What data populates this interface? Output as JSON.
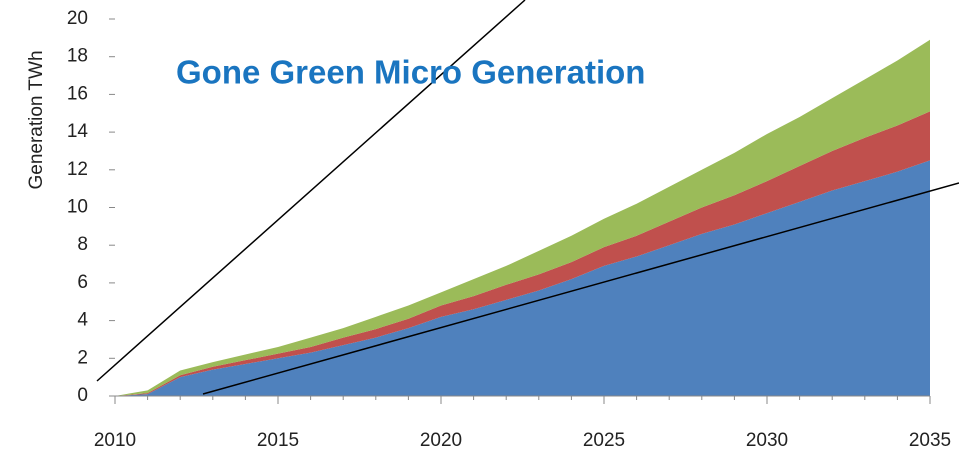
{
  "chart_data": {
    "type": "stacked_area",
    "title": "Gone Green Micro Generation",
    "y_label": "Generation TWh",
    "x": [
      2010,
      2011,
      2012,
      2013,
      2014,
      2015,
      2016,
      2017,
      2018,
      2019,
      2020,
      2021,
      2022,
      2023,
      2024,
      2025,
      2026,
      2027,
      2028,
      2029,
      2030,
      2031,
      2032,
      2033,
      2034,
      2035
    ],
    "series": [
      {
        "color": "#4f81bd",
        "values": [
          0,
          0.1,
          1.0,
          1.4,
          1.7,
          2.0,
          2.3,
          2.7,
          3.1,
          3.6,
          4.2,
          4.6,
          5.1,
          5.6,
          6.2,
          6.9,
          7.4,
          8.0,
          8.6,
          9.1,
          9.7,
          10.3,
          10.9,
          11.4,
          11.9,
          12.5
        ]
      },
      {
        "color": "#c0504d",
        "values": [
          0,
          0.05,
          0.1,
          0.15,
          0.2,
          0.25,
          0.3,
          0.4,
          0.45,
          0.5,
          0.6,
          0.7,
          0.8,
          0.85,
          0.9,
          1.0,
          1.1,
          1.25,
          1.4,
          1.55,
          1.7,
          1.9,
          2.1,
          2.3,
          2.45,
          2.6
        ]
      },
      {
        "color": "#9bbb59",
        "values": [
          0,
          0.15,
          0.25,
          0.25,
          0.3,
          0.35,
          0.5,
          0.5,
          0.65,
          0.7,
          0.7,
          0.9,
          1.0,
          1.25,
          1.4,
          1.5,
          1.7,
          1.85,
          2.0,
          2.25,
          2.5,
          2.6,
          2.8,
          3.1,
          3.45,
          3.8
        ]
      }
    ],
    "xlim": [
      2010,
      2035
    ],
    "xticks": [
      2010,
      2015,
      2020,
      2025,
      2030,
      2035
    ],
    "ylim": [
      0,
      20
    ],
    "yticks": [
      0,
      2,
      4,
      6,
      8,
      10,
      12,
      14,
      16,
      18,
      20
    ]
  }
}
